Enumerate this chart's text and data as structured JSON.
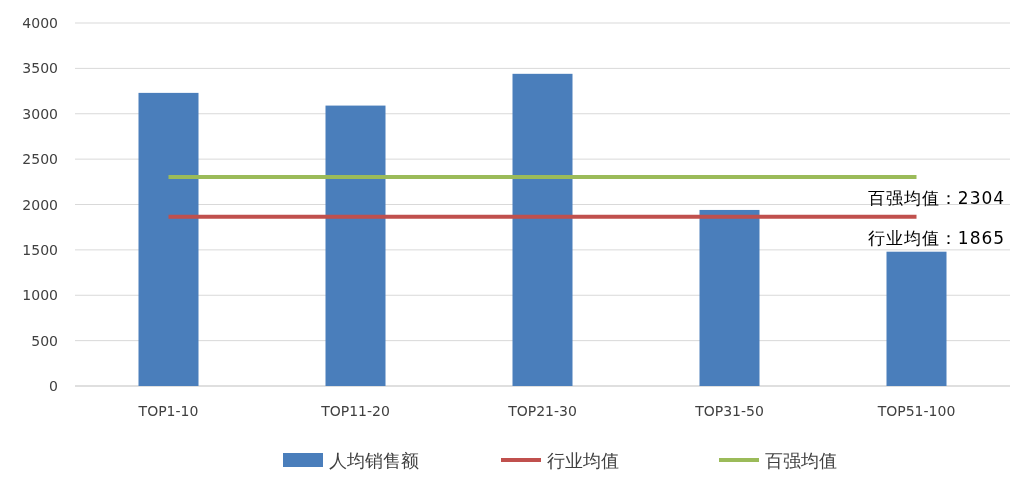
{
  "chart_data": {
    "type": "bar",
    "categories": [
      "TOP1-10",
      "TOP11-20",
      "TOP21-30",
      "TOP31-50",
      "TOP51-100"
    ],
    "series": [
      {
        "name": "人均销售额",
        "color": "#4a7ebb",
        "values": [
          3230,
          3090,
          3440,
          1940,
          1480
        ]
      },
      {
        "name": "行业均值",
        "type": "line",
        "color": "#c0504d",
        "values": [
          1865,
          1865,
          1865,
          1865,
          1865
        ]
      },
      {
        "name": "百强均值",
        "type": "line",
        "color": "#9bbb59",
        "values": [
          2304,
          2304,
          2304,
          2304,
          2304
        ]
      }
    ],
    "ylim": [
      0,
      4000
    ],
    "yticks": [
      0,
      500,
      1000,
      1500,
      2000,
      2500,
      3000,
      3500,
      4000
    ],
    "grid": "y",
    "legend": "bottom",
    "marker": "none",
    "line_style": "solid",
    "annotations": [
      {
        "text": "百强均值：2304",
        "x": "TOP51-100",
        "y": 2304
      },
      {
        "text": "行业均值：1865",
        "x": "TOP51-100",
        "y": 1865
      }
    ]
  }
}
